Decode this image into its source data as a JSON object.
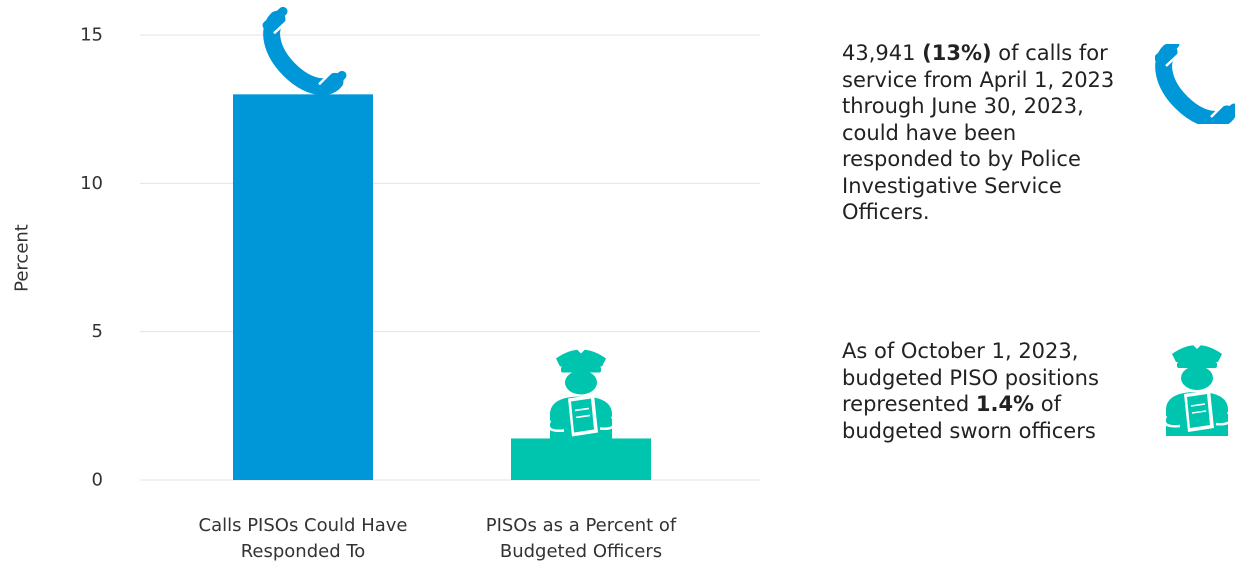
{
  "chart_data": {
    "type": "bar",
    "categories": [
      [
        "Calls PISOs Could Have",
        "Responded To"
      ],
      [
        "PISOs as a Percent of",
        "Budgeted Officers"
      ]
    ],
    "values": [
      13,
      1.4
    ],
    "ylabel": "Percent",
    "ylim": [
      0,
      15
    ],
    "yticks": [
      "0",
      "5",
      "10",
      "15"
    ],
    "grid": true,
    "colors": [
      "#0097d9",
      "#00c5ae"
    ],
    "bar_icons": [
      "phone-icon",
      "officer-icon"
    ]
  },
  "notes": [
    {
      "icon": "phone-icon",
      "color": "#0097d9",
      "lines": [
        [
          {
            "t": "43,941 "
          },
          {
            "t": "(13%)",
            "b": true
          },
          {
            "t": " of calls for"
          }
        ],
        [
          {
            "t": "service from April 1, 2023"
          }
        ],
        [
          {
            "t": "through June 30, 2023,"
          }
        ],
        [
          {
            "t": "could have been"
          }
        ],
        [
          {
            "t": "responded to by Police"
          }
        ],
        [
          {
            "t": "Investigative Service"
          }
        ],
        [
          {
            "t": "Officers."
          }
        ]
      ]
    },
    {
      "icon": "officer-icon",
      "color": "#00c5ae",
      "lines": [
        [
          {
            "t": "As of October 1, 2023,"
          }
        ],
        [
          {
            "t": "budgeted PISO positions"
          }
        ],
        [
          {
            "t": "represented "
          },
          {
            "t": "1.4%",
            "b": true
          },
          {
            "t": " of"
          }
        ],
        [
          {
            "t": "budgeted sworn officers"
          }
        ]
      ]
    }
  ]
}
